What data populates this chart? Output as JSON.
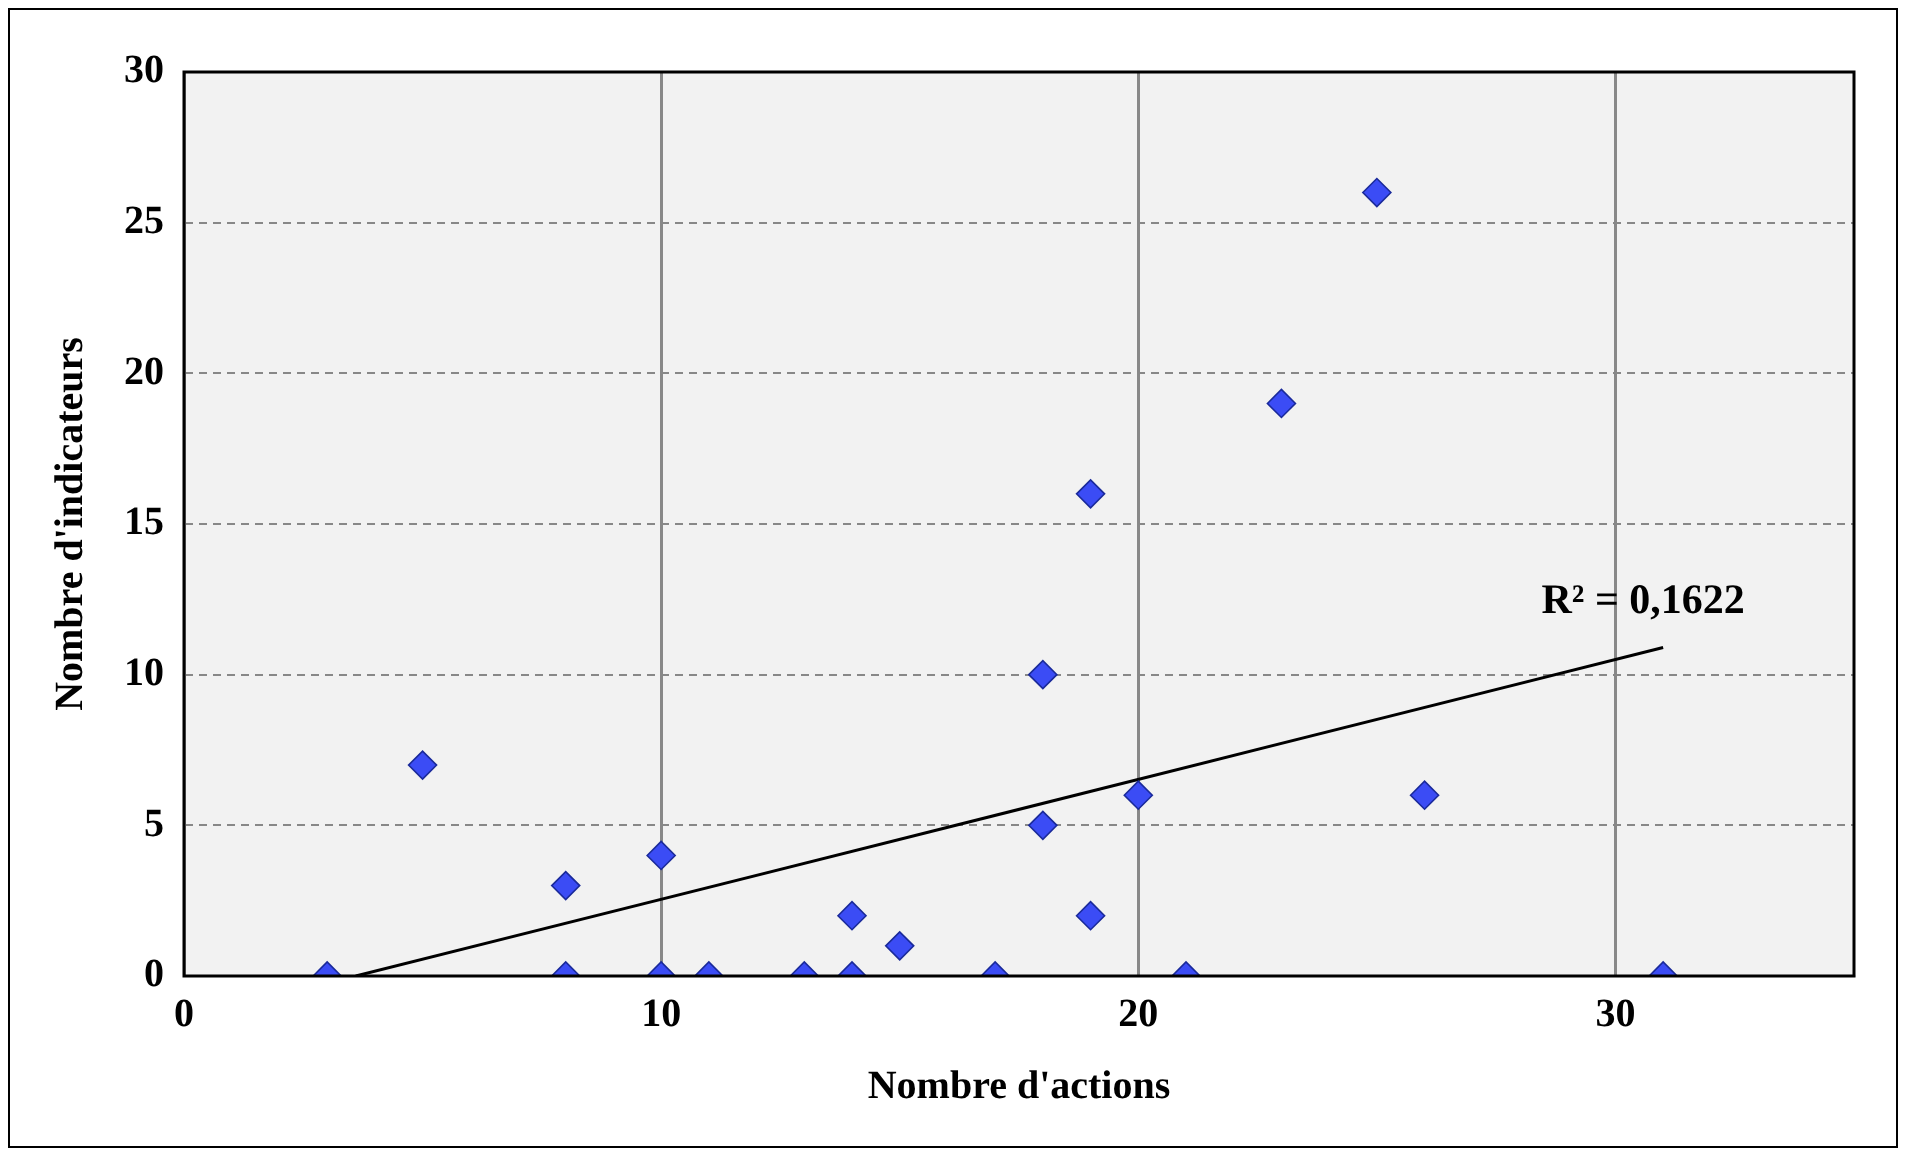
{
  "chart_data": {
    "type": "scatter",
    "xlabel": "Nombre d'actions",
    "ylabel": "Nombre d'indicateurs",
    "xlim": [
      0,
      35
    ],
    "xticks": [
      0,
      10,
      20,
      30
    ],
    "ylim": [
      0,
      30
    ],
    "yticks": [
      0,
      5,
      10,
      15,
      20,
      25,
      30
    ],
    "grid": true,
    "legend": false,
    "marker": "diamond",
    "series": [
      {
        "color": "#3b4cf5",
        "x": [
          3,
          5,
          8,
          8,
          10,
          10,
          11,
          13,
          14,
          14,
          15,
          17,
          18,
          18,
          19,
          19,
          20,
          21,
          23,
          25,
          26,
          31
        ],
        "values": [
          0,
          7,
          3,
          0,
          4,
          0,
          0,
          0,
          2,
          0,
          1,
          0,
          10,
          5,
          16,
          2,
          6,
          0,
          19,
          26,
          6,
          0
        ]
      },
      {
        "type": "line",
        "color": "#000000",
        "x": [
          3.6,
          31
        ],
        "values": [
          0,
          10.9
        ],
        "marker": "none"
      }
    ],
    "annotations": [
      "R² = 0,1622"
    ]
  }
}
